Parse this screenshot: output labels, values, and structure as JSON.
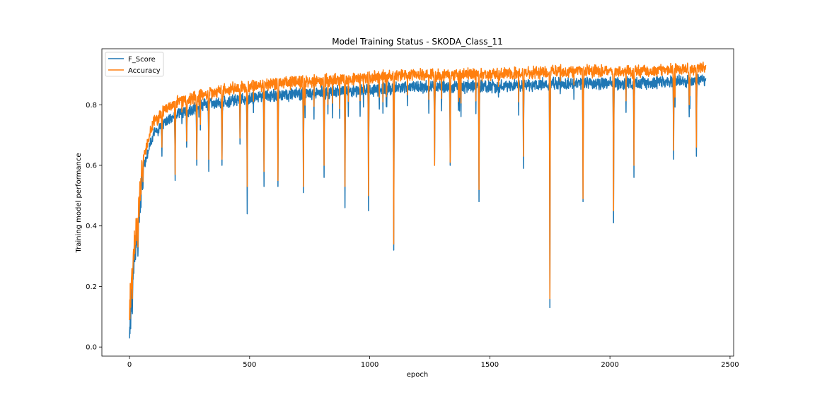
{
  "chart_data": {
    "type": "line",
    "title": "Model Training Status - SKODA_Class_11",
    "xlabel": "epoch",
    "ylabel": "Training model performance",
    "xlim": [
      -115,
      2515
    ],
    "ylim": [
      -0.03,
      0.985
    ],
    "xticks": [
      0,
      500,
      1000,
      1500,
      2000,
      2500
    ],
    "yticks": [
      0.0,
      0.2,
      0.4,
      0.6,
      0.8
    ],
    "grid": false,
    "legend_position": "top-left",
    "x_extent": [
      0,
      2399
    ],
    "anchors_x": [
      0,
      5,
      10,
      20,
      30,
      40,
      50,
      60,
      80,
      100,
      130,
      160,
      200,
      250,
      300,
      400,
      500,
      600,
      800,
      1000,
      1200,
      1500,
      1800,
      2100,
      2399
    ],
    "series": [
      {
        "name": "F_Score",
        "color": "#1f77b4",
        "anchors_y": [
          0.04,
          0.12,
          0.2,
          0.28,
          0.35,
          0.44,
          0.52,
          0.6,
          0.65,
          0.7,
          0.73,
          0.75,
          0.77,
          0.78,
          0.8,
          0.81,
          0.82,
          0.83,
          0.84,
          0.85,
          0.86,
          0.86,
          0.87,
          0.87,
          0.88
        ],
        "noise": 0.02,
        "dips": [
          [
            12,
            0.11
          ],
          [
            35,
            0.3
          ],
          [
            135,
            0.63
          ],
          [
            190,
            0.55
          ],
          [
            238,
            0.66
          ],
          [
            280,
            0.6
          ],
          [
            330,
            0.58
          ],
          [
            385,
            0.6
          ],
          [
            460,
            0.67
          ],
          [
            490,
            0.44
          ],
          [
            560,
            0.53
          ],
          [
            618,
            0.53
          ],
          [
            724,
            0.51
          ],
          [
            810,
            0.56
          ],
          [
            897,
            0.46
          ],
          [
            995,
            0.45
          ],
          [
            1100,
            0.32
          ],
          [
            1270,
            0.6
          ],
          [
            1335,
            0.6
          ],
          [
            1455,
            0.48
          ],
          [
            1640,
            0.59
          ],
          [
            1750,
            0.13
          ],
          [
            1888,
            0.48
          ],
          [
            2015,
            0.41
          ],
          [
            2100,
            0.56
          ],
          [
            2265,
            0.62
          ],
          [
            2330,
            0.76
          ],
          [
            2360,
            0.63
          ]
        ]
      },
      {
        "name": "Accuracy",
        "color": "#ff7f0e",
        "anchors_y": [
          0.1,
          0.18,
          0.25,
          0.32,
          0.4,
          0.48,
          0.56,
          0.63,
          0.69,
          0.74,
          0.77,
          0.79,
          0.81,
          0.82,
          0.83,
          0.85,
          0.86,
          0.87,
          0.88,
          0.89,
          0.9,
          0.9,
          0.91,
          0.91,
          0.92
        ],
        "noise": 0.02,
        "dips": [
          [
            12,
            0.16
          ],
          [
            35,
            0.33
          ],
          [
            135,
            0.66
          ],
          [
            190,
            0.57
          ],
          [
            238,
            0.68
          ],
          [
            280,
            0.62
          ],
          [
            330,
            0.62
          ],
          [
            385,
            0.62
          ],
          [
            460,
            0.69
          ],
          [
            490,
            0.53
          ],
          [
            560,
            0.58
          ],
          [
            618,
            0.55
          ],
          [
            724,
            0.53
          ],
          [
            810,
            0.6
          ],
          [
            897,
            0.53
          ],
          [
            995,
            0.5
          ],
          [
            1100,
            0.34
          ],
          [
            1270,
            0.6
          ],
          [
            1335,
            0.61
          ],
          [
            1455,
            0.52
          ],
          [
            1640,
            0.63
          ],
          [
            1750,
            0.16
          ],
          [
            1888,
            0.49
          ],
          [
            2015,
            0.45
          ],
          [
            2100,
            0.6
          ],
          [
            2265,
            0.65
          ],
          [
            2330,
            0.8
          ],
          [
            2360,
            0.66
          ]
        ]
      }
    ]
  },
  "chart": {
    "title": "Model Training Status - SKODA_Class_11",
    "xlabel": "epoch",
    "ylabel": "Training model performance",
    "xtick_labels": [
      "0",
      "500",
      "1000",
      "1500",
      "2000",
      "2500"
    ],
    "ytick_labels": [
      "0.0",
      "0.2",
      "0.4",
      "0.6",
      "0.8"
    ],
    "legend": [
      "F_Score",
      "Accuracy"
    ]
  }
}
